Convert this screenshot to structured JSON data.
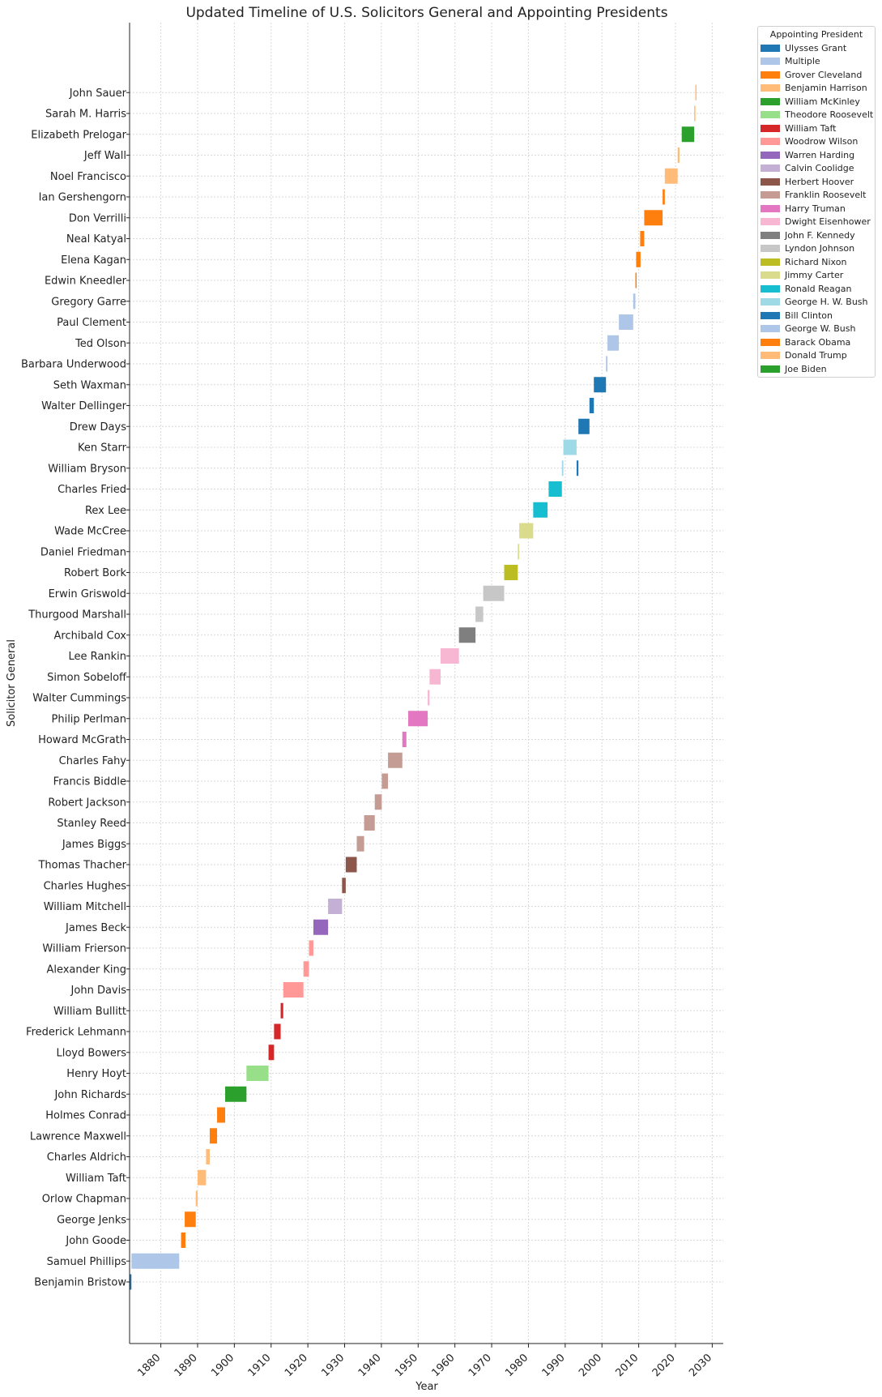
{
  "chart_data": {
    "type": "timeline",
    "title": "Updated Timeline of U.S. Solicitors General and Appointing Presidents",
    "xlabel": "Year",
    "ylabel": "Solicitor General",
    "xlim": [
      1871.5,
      2033
    ],
    "xticks": [
      1880,
      1890,
      1900,
      1910,
      1920,
      1930,
      1940,
      1950,
      1960,
      1970,
      1980,
      1990,
      2000,
      2010,
      2020,
      2030
    ],
    "grid": true,
    "legend_title": "Appointing President",
    "legend_position": "outside-right",
    "presidents": [
      {
        "name": "Ulysses Grant",
        "color": "#1f77b4"
      },
      {
        "name": "Multiple",
        "color": "#aec7e8"
      },
      {
        "name": "Grover Cleveland",
        "color": "#ff7f0e"
      },
      {
        "name": "Benjamin Harrison",
        "color": "#ffbb78"
      },
      {
        "name": "William McKinley",
        "color": "#2ca02c"
      },
      {
        "name": "Theodore Roosevelt",
        "color": "#98df8a"
      },
      {
        "name": "William Taft",
        "color": "#d62728"
      },
      {
        "name": "Woodrow Wilson",
        "color": "#ff9896"
      },
      {
        "name": "Warren Harding",
        "color": "#9467bd"
      },
      {
        "name": "Calvin Coolidge",
        "color": "#c5b0d5"
      },
      {
        "name": "Herbert Hoover",
        "color": "#8c564b"
      },
      {
        "name": "Franklin Roosevelt",
        "color": "#c49c94"
      },
      {
        "name": "Harry Truman",
        "color": "#e377c2"
      },
      {
        "name": "Dwight Eisenhower",
        "color": "#f7b6d2"
      },
      {
        "name": "John F. Kennedy",
        "color": "#7f7f7f"
      },
      {
        "name": "Lyndon Johnson",
        "color": "#c7c7c7"
      },
      {
        "name": "Richard Nixon",
        "color": "#bcbd22"
      },
      {
        "name": "Jimmy Carter",
        "color": "#dbdb8d"
      },
      {
        "name": "Ronald Reagan",
        "color": "#17becf"
      },
      {
        "name": "George H. W. Bush",
        "color": "#9edae5"
      },
      {
        "name": "Bill Clinton",
        "color": "#1f77b4"
      },
      {
        "name": "George W. Bush",
        "color": "#aec7e8"
      },
      {
        "name": "Barack Obama",
        "color": "#ff7f0e"
      },
      {
        "name": "Donald Trump",
        "color": "#ffbb78"
      },
      {
        "name": "Joe Biden",
        "color": "#2ca02c"
      }
    ],
    "entries": [
      {
        "name": "Benjamin Bristow",
        "start": 1870,
        "end": 1872,
        "color": "#1f77b4"
      },
      {
        "name": "Samuel Phillips",
        "start": 1872,
        "end": 1885,
        "color": "#aec7e8"
      },
      {
        "name": "John Goode",
        "start": 1885.5,
        "end": 1886.7,
        "color": "#ff7f0e"
      },
      {
        "name": "George Jenks",
        "start": 1886.5,
        "end": 1889.5,
        "color": "#ff7f0e"
      },
      {
        "name": "Orlow Chapman",
        "start": 1889.5,
        "end": 1890,
        "color": "#ffbb78"
      },
      {
        "name": "William Taft",
        "start": 1890,
        "end": 1892.3,
        "color": "#ffbb78"
      },
      {
        "name": "Charles Aldrich",
        "start": 1892.3,
        "end": 1893.3,
        "color": "#ffbb78"
      },
      {
        "name": "Lawrence Maxwell",
        "start": 1893.3,
        "end": 1895.3,
        "color": "#ff7f0e"
      },
      {
        "name": "Holmes Conrad",
        "start": 1895.3,
        "end": 1897.5,
        "color": "#ff7f0e"
      },
      {
        "name": "John Richards",
        "start": 1897.5,
        "end": 1903.3,
        "color": "#2ca02c"
      },
      {
        "name": "Henry Hoyt",
        "start": 1903.3,
        "end": 1909.3,
        "color": "#98df8a"
      },
      {
        "name": "Lloyd Bowers",
        "start": 1909.3,
        "end": 1910.8,
        "color": "#d62728"
      },
      {
        "name": "Frederick Lehmann",
        "start": 1910.8,
        "end": 1912.6,
        "color": "#d62728"
      },
      {
        "name": "William Bullitt",
        "start": 1912.6,
        "end": 1913.3,
        "color": "#d62728"
      },
      {
        "name": "John Davis",
        "start": 1913.3,
        "end": 1918.8,
        "color": "#ff9896"
      },
      {
        "name": "Alexander King",
        "start": 1918.8,
        "end": 1920.3,
        "color": "#ff9896"
      },
      {
        "name": "William Frierson",
        "start": 1920.3,
        "end": 1921.5,
        "color": "#ff9896"
      },
      {
        "name": "James Beck",
        "start": 1921.5,
        "end": 1925.5,
        "color": "#9467bd"
      },
      {
        "name": "William Mitchell",
        "start": 1925.5,
        "end": 1929.3,
        "color": "#c5b0d5"
      },
      {
        "name": "Charles Hughes",
        "start": 1929.3,
        "end": 1930.3,
        "color": "#8c564b"
      },
      {
        "name": "Thomas Thacher",
        "start": 1930.3,
        "end": 1933.3,
        "color": "#8c564b"
      },
      {
        "name": "James Biggs",
        "start": 1933.3,
        "end": 1935.3,
        "color": "#c49c94"
      },
      {
        "name": "Stanley Reed",
        "start": 1935.3,
        "end": 1938.2,
        "color": "#c49c94"
      },
      {
        "name": "Robert Jackson",
        "start": 1938.2,
        "end": 1940.1,
        "color": "#c49c94"
      },
      {
        "name": "Francis Biddle",
        "start": 1940.1,
        "end": 1941.8,
        "color": "#c49c94"
      },
      {
        "name": "Charles Fahy",
        "start": 1941.8,
        "end": 1945.7,
        "color": "#c49c94"
      },
      {
        "name": "Howard McGrath",
        "start": 1945.7,
        "end": 1946.8,
        "color": "#e377c2"
      },
      {
        "name": "Philip Perlman",
        "start": 1947.3,
        "end": 1952.6,
        "color": "#e377c2"
      },
      {
        "name": "Walter Cummings",
        "start": 1952.6,
        "end": 1953.1,
        "color": "#f7b6d2"
      },
      {
        "name": "Simon Sobeloff",
        "start": 1953.1,
        "end": 1956.1,
        "color": "#f7b6d2"
      },
      {
        "name": "Lee Rankin",
        "start": 1956.1,
        "end": 1961.1,
        "color": "#f7b6d2"
      },
      {
        "name": "Archibald Cox",
        "start": 1961.1,
        "end": 1965.6,
        "color": "#7f7f7f"
      },
      {
        "name": "Thurgood Marshall",
        "start": 1965.6,
        "end": 1967.7,
        "color": "#c7c7c7"
      },
      {
        "name": "Erwin Griswold",
        "start": 1967.7,
        "end": 1973.4,
        "color": "#c7c7c7"
      },
      {
        "name": "Robert Bork",
        "start": 1973.4,
        "end": 1977.1,
        "color": "#bcbd22"
      },
      {
        "name": "Daniel Friedman",
        "start": 1977.1,
        "end": 1977.5,
        "color": "#dbdb8d"
      },
      {
        "name": "Wade McCree",
        "start": 1977.5,
        "end": 1981.3,
        "color": "#dbdb8d"
      },
      {
        "name": "Rex Lee",
        "start": 1981.3,
        "end": 1985.2,
        "color": "#17becf"
      },
      {
        "name": "Charles Fried",
        "start": 1985.5,
        "end": 1989.1,
        "color": "#17becf"
      },
      {
        "name": "William Bryson",
        "start": 1989.1,
        "end": 1989.5,
        "color": "#9edae5"
      },
      {
        "name": "William Bryson",
        "start": 1993.1,
        "end": 1993.6,
        "color": "#1f77b4"
      },
      {
        "name": "Ken Starr",
        "start": 1989.5,
        "end": 1993.1,
        "color": "#9edae5"
      },
      {
        "name": "Drew Days",
        "start": 1993.6,
        "end": 1996.6,
        "color": "#1f77b4"
      },
      {
        "name": "Walter Dellinger",
        "start": 1996.6,
        "end": 1997.8,
        "color": "#1f77b4"
      },
      {
        "name": "Seth Waxman",
        "start": 1997.8,
        "end": 2001.1,
        "color": "#1f77b4"
      },
      {
        "name": "Barbara Underwood",
        "start": 2001.1,
        "end": 2001.5,
        "color": "#aec7e8"
      },
      {
        "name": "Ted Olson",
        "start": 2001.5,
        "end": 2004.6,
        "color": "#aec7e8"
      },
      {
        "name": "Paul Clement",
        "start": 2004.6,
        "end": 2008.5,
        "color": "#aec7e8"
      },
      {
        "name": "Gregory Garre",
        "start": 2008.5,
        "end": 2009.1,
        "color": "#aec7e8"
      },
      {
        "name": "Edwin Kneedler",
        "start": 2009.1,
        "end": 2009.3,
        "color": "#ff7f0e"
      },
      {
        "name": "Elena Kagan",
        "start": 2009.3,
        "end": 2010.5,
        "color": "#ff7f0e"
      },
      {
        "name": "Neal Katyal",
        "start": 2010.4,
        "end": 2011.5,
        "color": "#ff7f0e"
      },
      {
        "name": "Don Verrilli",
        "start": 2011.5,
        "end": 2016.5,
        "color": "#ff7f0e"
      },
      {
        "name": "Ian Gershengorn",
        "start": 2016.5,
        "end": 2017.1,
        "color": "#ff7f0e"
      },
      {
        "name": "Noel Francisco",
        "start": 2017.1,
        "end": 2020.6,
        "color": "#ffbb78"
      },
      {
        "name": "Jeff Wall",
        "start": 2020.6,
        "end": 2021.1,
        "color": "#ffbb78"
      },
      {
        "name": "Elizabeth Prelogar",
        "start": 2021.7,
        "end": 2025.1,
        "color": "#2ca02c"
      },
      {
        "name": "Sarah M. Harris",
        "start": 2025.1,
        "end": 2025.4,
        "color": "#ffbb78"
      },
      {
        "name": "John Sauer",
        "start": 2025.4,
        "end": 2025.6,
        "color": "#ffbb78"
      }
    ],
    "rows": [
      "Benjamin Bristow",
      "Samuel Phillips",
      "John Goode",
      "George Jenks",
      "Orlow Chapman",
      "William Taft",
      "Charles Aldrich",
      "Lawrence Maxwell",
      "Holmes Conrad",
      "John Richards",
      "Henry Hoyt",
      "Lloyd Bowers",
      "Frederick Lehmann",
      "William Bullitt",
      "John Davis",
      "Alexander King",
      "William Frierson",
      "James Beck",
      "William Mitchell",
      "Charles Hughes",
      "Thomas Thacher",
      "James Biggs",
      "Stanley Reed",
      "Robert Jackson",
      "Francis Biddle",
      "Charles Fahy",
      "Howard McGrath",
      "Philip Perlman",
      "Walter Cummings",
      "Simon Sobeloff",
      "Lee Rankin",
      "Archibald Cox",
      "Thurgood Marshall",
      "Erwin Griswold",
      "Robert Bork",
      "Daniel Friedman",
      "Wade McCree",
      "Rex Lee",
      "Charles Fried",
      "William Bryson",
      "Ken Starr",
      "Drew Days",
      "Walter Dellinger",
      "Seth Waxman",
      "Barbara Underwood",
      "Ted Olson",
      "Paul Clement",
      "Gregory Garre",
      "Edwin Kneedler",
      "Elena Kagan",
      "Neal Katyal",
      "Don Verrilli",
      "Ian Gershengorn",
      "Noel Francisco",
      "Jeff Wall",
      "Elizabeth Prelogar",
      "Sarah M. Harris",
      "John Sauer"
    ]
  }
}
